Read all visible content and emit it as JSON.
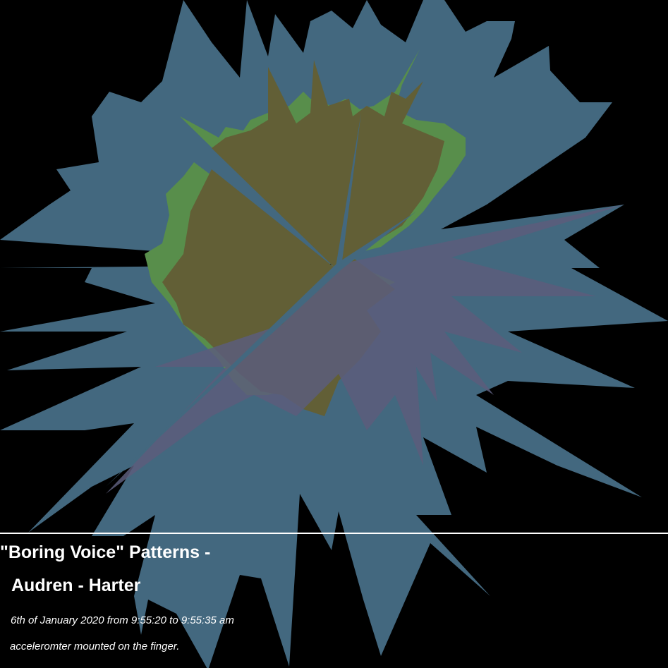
{
  "title_line1": "\"Boring Voice\" Patterns -",
  "title_line2": "Audren - Harter",
  "date_line": "6th of January 2020 from 9:55:20 to 9:55:35 am",
  "sensor_line": "acceleromter mounted on the finger.",
  "colors": {
    "background": "#000000",
    "outer_layer": "#43687f",
    "middle_layer": "#588e4b",
    "inner_layer": "#625f36",
    "spike_layer": "#5c5d7b",
    "divider": "#ffffff",
    "text": "#ffffff"
  }
}
